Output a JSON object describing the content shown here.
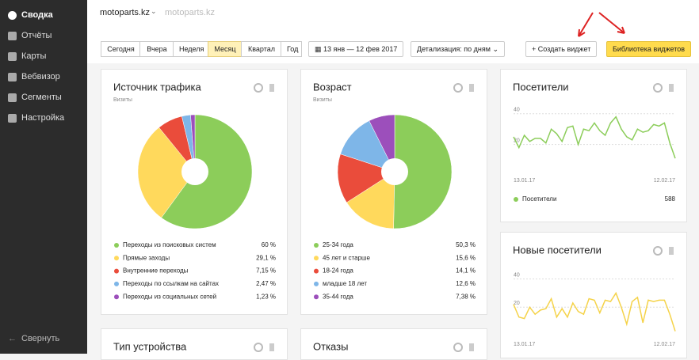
{
  "sidebar": {
    "items": [
      "Сводка",
      "Отчёты",
      "Карты",
      "Вебвизор",
      "Сегменты",
      "Настройка"
    ],
    "selected": 0,
    "collapse": "Свернуть"
  },
  "header": {
    "site": "motoparts.kz",
    "site_secondary": "motoparts.kz"
  },
  "toolbar": {
    "periods": [
      "Сегодня",
      "Вчера",
      "Неделя",
      "Месяц",
      "Квартал",
      "Год"
    ],
    "selected_period": 3,
    "date_range": "13 янв — 12 фев 2017",
    "detail": "Детализация: по дням",
    "create_widget": "Создать виджет",
    "library": "Библиотека виджетов"
  },
  "widgets": {
    "traffic": {
      "title": "Источник трафика",
      "subtitle": "Визиты",
      "items": [
        {
          "name": "Переходы из поисковых систем",
          "color": "#8ccd5a",
          "value": 60,
          "label": "60 %"
        },
        {
          "name": "Прямые заходы",
          "color": "#ffd95c",
          "value": 29.1,
          "label": "29,1 %"
        },
        {
          "name": "Внутренние переходы",
          "color": "#ea4c3b",
          "value": 7.15,
          "label": "7,15 %"
        },
        {
          "name": "Переходы по ссылкам на сайтах",
          "color": "#7eb6e8",
          "value": 2.47,
          "label": "2,47 %"
        },
        {
          "name": "Переходы из социальных сетей",
          "color": "#9c4fbb",
          "value": 1.23,
          "label": "1,23 %"
        }
      ]
    },
    "age": {
      "title": "Возраст",
      "subtitle": "Визиты",
      "items": [
        {
          "name": "25-34 года",
          "color": "#8ccd5a",
          "value": 50.3,
          "label": "50,3 %"
        },
        {
          "name": "45 лет и старше",
          "color": "#ffd95c",
          "value": 15.6,
          "label": "15,6 %"
        },
        {
          "name": "18-24 года",
          "color": "#ea4c3b",
          "value": 14.1,
          "label": "14,1 %"
        },
        {
          "name": "младше 18 лет",
          "color": "#7eb6e8",
          "value": 12.6,
          "label": "12,6 %"
        },
        {
          "name": "35-44 года",
          "color": "#9c4fbb",
          "value": 7.38,
          "label": "7,38 %"
        }
      ]
    },
    "visitors": {
      "title": "Посетители",
      "color": "#8ccd5a",
      "ylim": [
        8,
        44
      ],
      "yticks": [
        20,
        40
      ],
      "x_start": "13.01.17",
      "x_end": "12.02.17",
      "legend": "Посетители",
      "total": 588,
      "values": [
        25,
        18,
        26,
        22,
        24,
        24,
        21,
        30,
        27,
        22,
        31,
        32,
        20,
        30,
        29,
        34,
        29,
        26,
        34,
        38,
        30,
        25,
        23,
        30,
        28,
        29,
        33,
        32,
        34,
        21,
        11
      ]
    },
    "new_visitors": {
      "title": "Новые посетители",
      "color": "#f5d34a",
      "ylim": [
        0,
        42
      ],
      "yticks": [
        20,
        40
      ],
      "x_start": "13.01.17",
      "x_end": "12.02.17",
      "values": [
        22,
        13,
        12,
        20,
        15,
        18,
        19,
        26,
        13,
        19,
        13,
        23,
        17,
        15,
        26,
        25,
        16,
        25,
        24,
        30,
        20,
        8,
        24,
        27,
        9,
        25,
        24,
        25,
        25,
        15,
        3
      ]
    },
    "device": {
      "title": "Тип устройства"
    },
    "bounces": {
      "title": "Отказы"
    }
  }
}
